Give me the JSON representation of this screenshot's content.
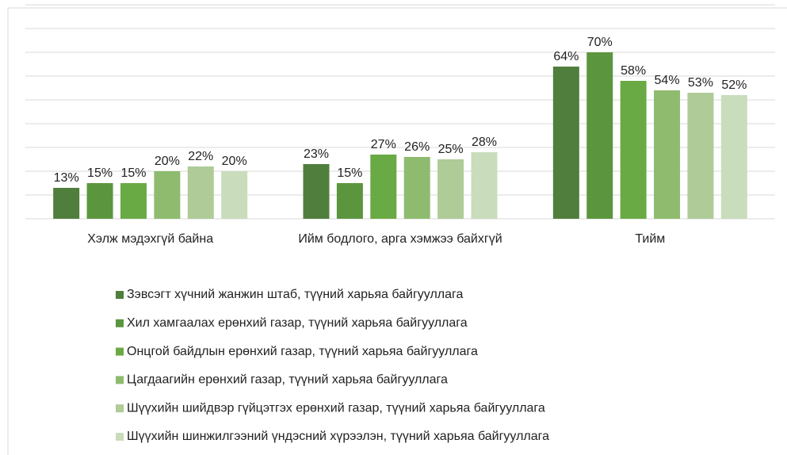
{
  "chart_data": {
    "type": "bar",
    "categories": [
      "Хэлж мэдэхгүй байна",
      "Ийм бодлого, арга хэмжээ байхгүй",
      "Тийм"
    ],
    "series": [
      {
        "name": "Зэвсэгт хүчний жанжин штаб, түүний харьяа байгууллага",
        "color": "#507e3c",
        "values": [
          13,
          23,
          64
        ],
        "value_labels": [
          "13%",
          "23%",
          "64%"
        ]
      },
      {
        "name": "Хил хамгаалах ерөнхий газар, түүний харьяа байгууллага",
        "color": "#5b963e",
        "values": [
          15,
          15,
          70
        ],
        "value_labels": [
          "15%",
          "15%",
          "70%"
        ]
      },
      {
        "name": "Онцгой байдлын ерөнхий газар, түүний харьяа байгууллага",
        "color": "#6aaa44",
        "values": [
          15,
          27,
          58
        ],
        "value_labels": [
          "15%",
          "27%",
          "58%"
        ]
      },
      {
        "name": "Цагдаагийн ерөнхий газар, түүний харьяа байгууллага",
        "color": "#8fbb6f",
        "values": [
          20,
          26,
          54
        ],
        "value_labels": [
          "20%",
          "26%",
          "54%"
        ]
      },
      {
        "name": "Шүүхийн шийдвэр гүйцэтгэх ерөнхий газар, түүний харьяа байгууллага",
        "color": "#aecb98",
        "values": [
          22,
          25,
          53
        ],
        "value_labels": [
          "22%",
          "25%",
          "53%"
        ]
      },
      {
        "name": "Шүүхийн шинжилгээний үндэсний хүрээлэн, түүний харьяа байгууллага",
        "color": "#c9dcbc",
        "values": [
          20,
          28,
          52
        ],
        "value_labels": [
          "20%",
          "28%",
          "52%"
        ]
      }
    ],
    "ylim": [
      0,
      90
    ],
    "yticks": [
      0,
      10,
      20,
      30,
      40,
      50,
      60,
      70,
      80,
      90
    ],
    "grid": true,
    "legend": "bottom"
  }
}
